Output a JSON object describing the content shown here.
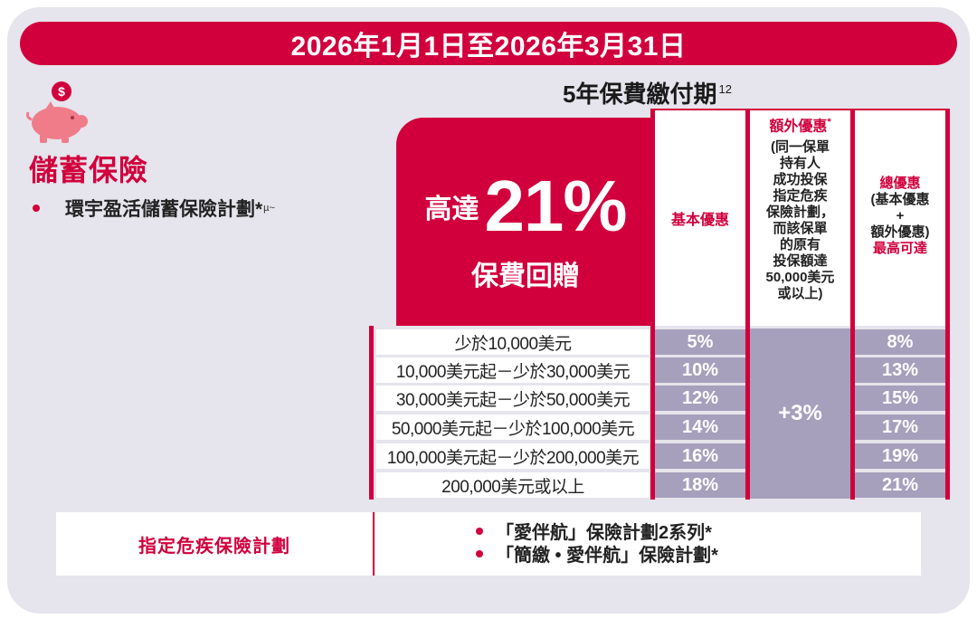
{
  "banner": {
    "date_range": "2026年1月1日至2026年3月31日"
  },
  "category": {
    "icon": "piggy-bank-dollar-icon",
    "title": "儲蓄保險",
    "plan_name": "環宇盈活儲蓄保險計劃*",
    "plan_marks": "µ~"
  },
  "period": {
    "title": "5年保費繳付期",
    "note": "12"
  },
  "hero": {
    "prefix": "高達",
    "big": "21%",
    "sub": "保費回贈"
  },
  "headers": {
    "basic": "基本優惠",
    "extra_title": "額外優惠",
    "extra_mark": "*",
    "extra_desc": [
      "(同一保單",
      "持有人",
      "成功投保",
      "指定危疾",
      "保險計劃，",
      "而該保單",
      "的原有",
      "投保額達",
      "50,000美元",
      "或以上)"
    ],
    "total": [
      "總優惠",
      "(基本優惠",
      "+",
      "額外優惠)"
    ],
    "total_max": "最高可達"
  },
  "rows": [
    {
      "tier": "少於10,000美元",
      "basic": "5%",
      "total": "8%"
    },
    {
      "tier": "10,000美元起－少於30,000美元",
      "basic": "10%",
      "total": "13%"
    },
    {
      "tier": "30,000美元起－少於50,000美元",
      "basic": "12%",
      "total": "15%"
    },
    {
      "tier": "50,000美元起－少於100,000美元",
      "basic": "14%",
      "total": "17%"
    },
    {
      "tier": "100,000美元起－少於200,000美元",
      "basic": "16%",
      "total": "19%"
    },
    {
      "tier": "200,000美元或以上",
      "basic": "18%",
      "total": "21%"
    }
  ],
  "extra_value": "+3%",
  "footer": {
    "label": "指定危疾保險計劃",
    "items": [
      "「愛伴航」保險計劃2系列*",
      "「簡繳 • 愛伴航」保險計劃*"
    ]
  },
  "colors": {
    "brand_red": "#d1003d",
    "cell_purple": "#a6a0bc",
    "panel_gray": "#e6e4ec"
  }
}
